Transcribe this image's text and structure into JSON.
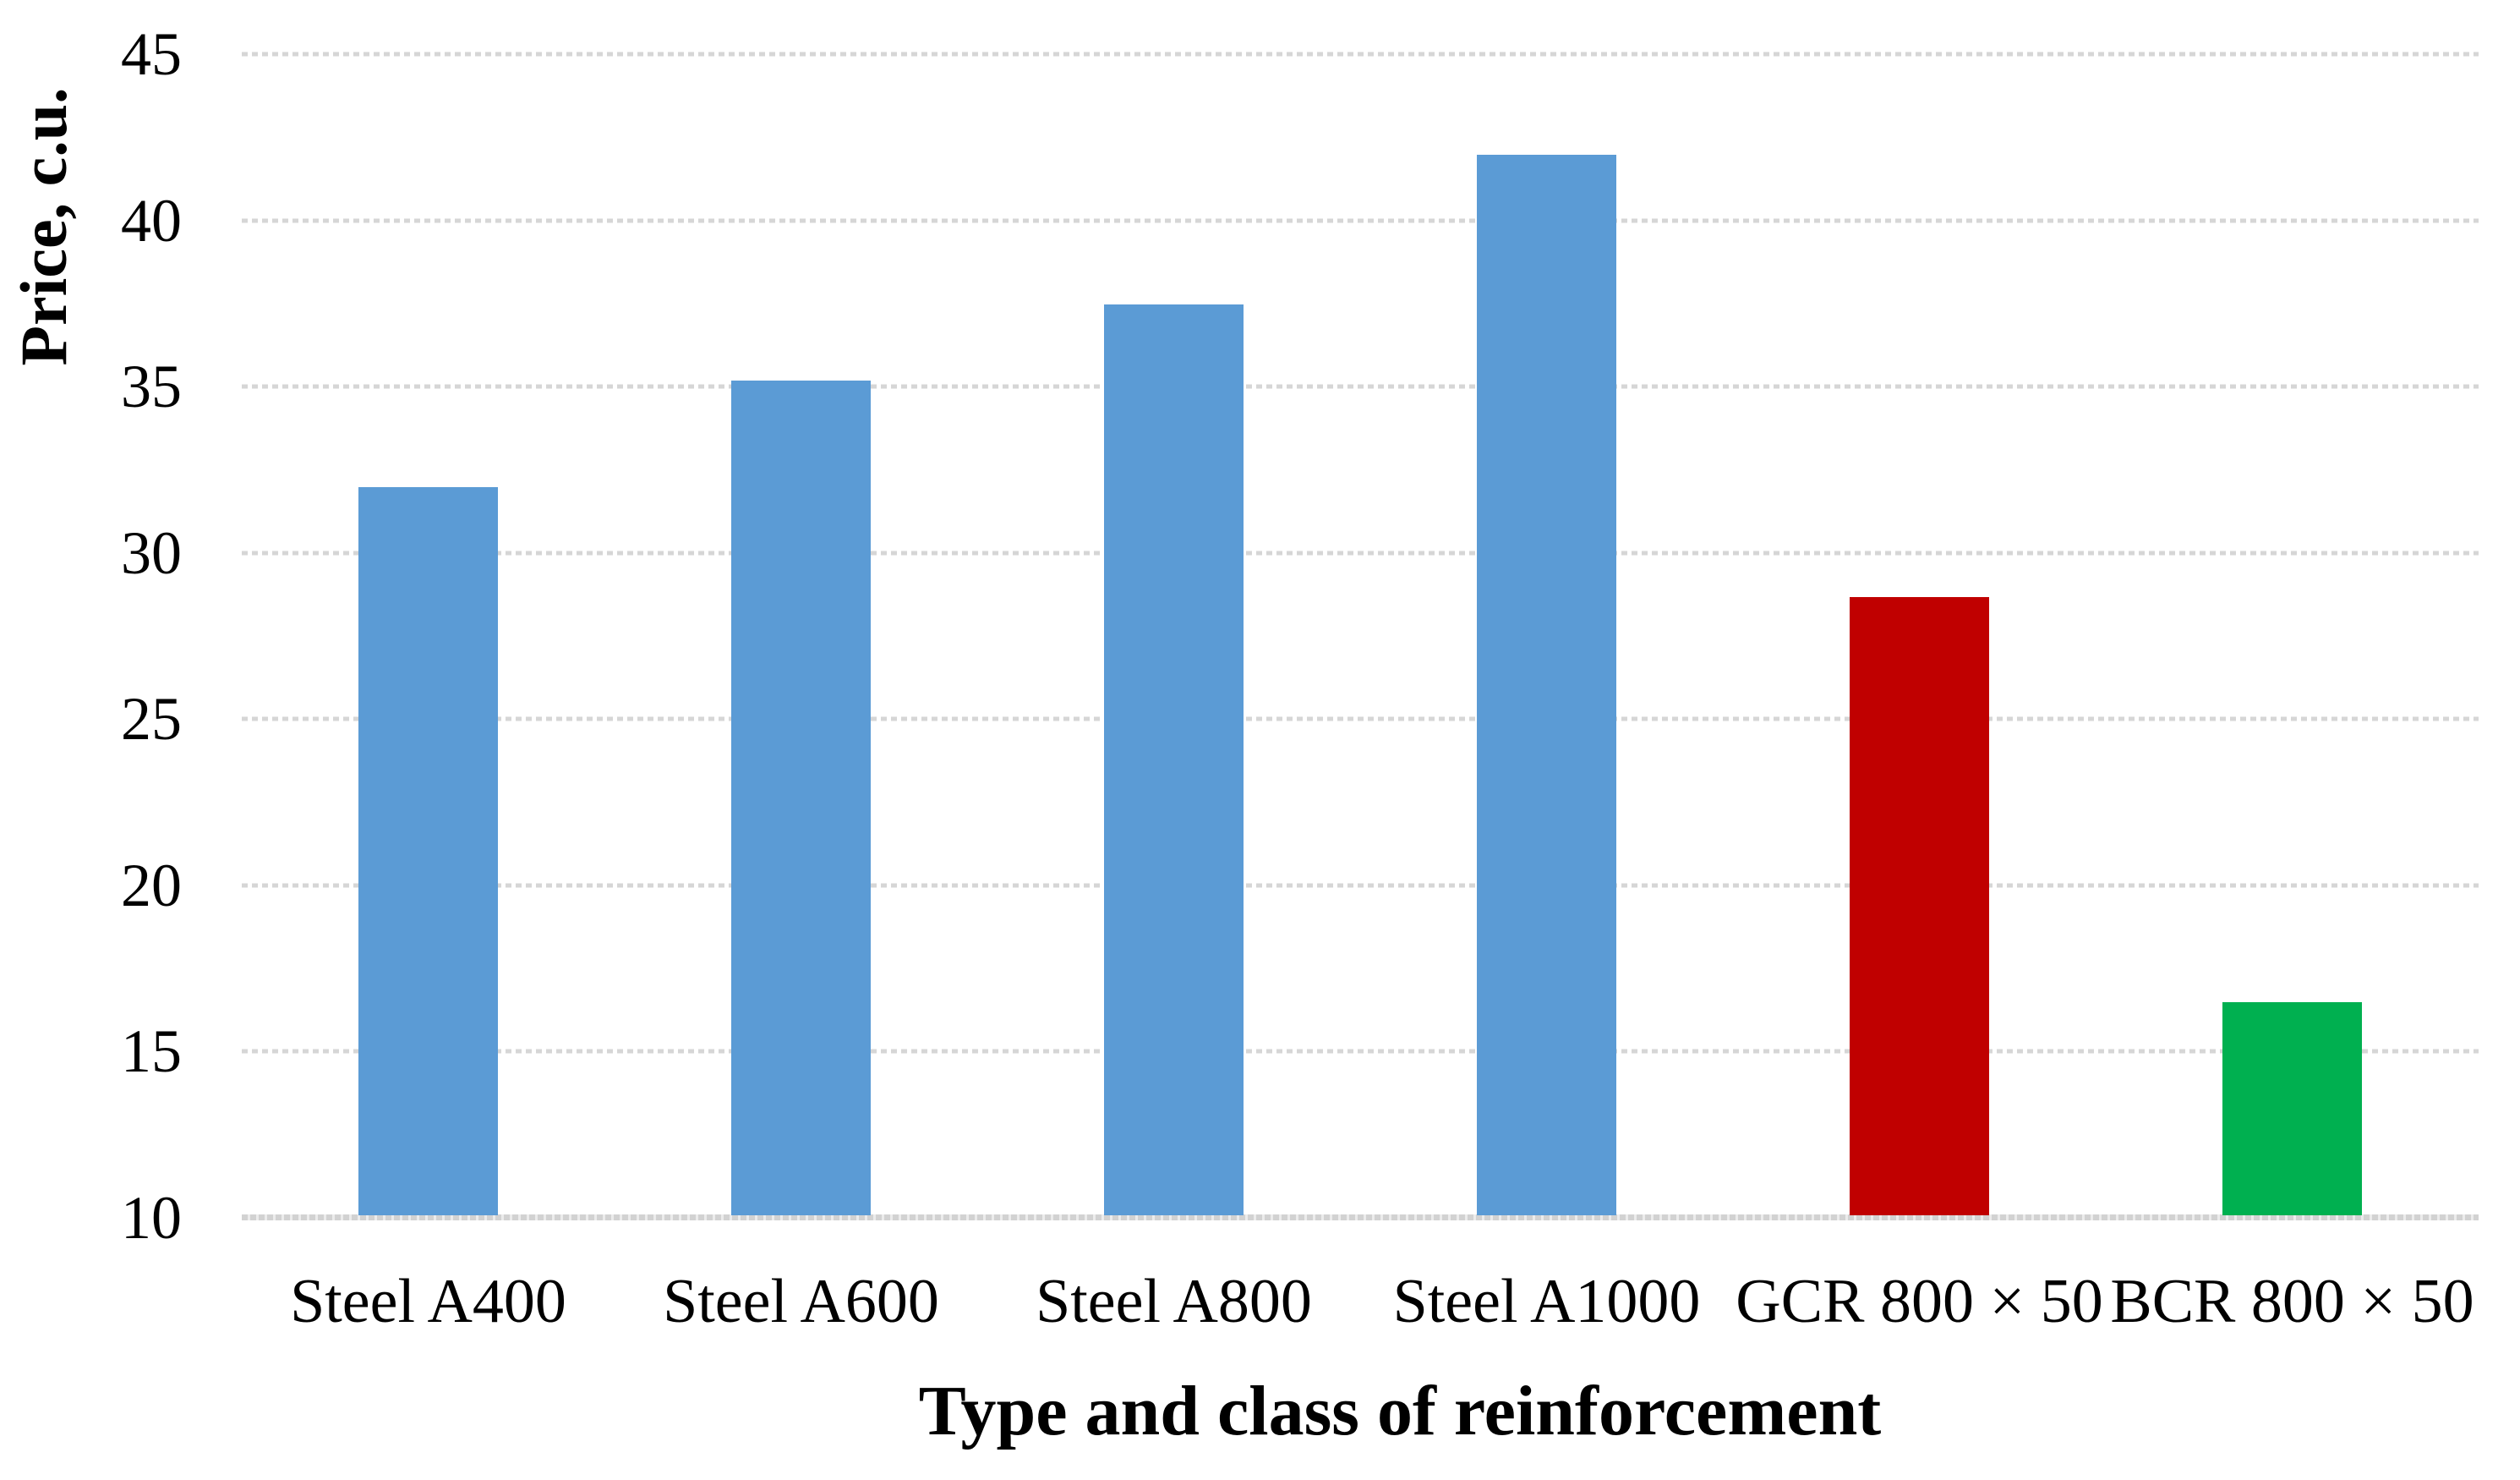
{
  "figure": {
    "kind": "static-bar-chart-figure",
    "background_color": "#ffffff",
    "text_color": "#000000",
    "gridline_color": "#d6d6d6",
    "baseline_color": "#d2d2d2"
  },
  "chart_data": {
    "type": "bar",
    "title": "",
    "xlabel": "Type and class of reinforcement",
    "ylabel": "Price, c.u.",
    "categories": [
      "Steel A400",
      "Steel A600",
      "Steel A800",
      "Steel A1000",
      "GCR 800 × 50",
      "BCR 800 × 50"
    ],
    "values": [
      31.9,
      35.1,
      37.4,
      41.9,
      28.6,
      16.4
    ],
    "bar_colors": [
      "#5B9BD5",
      "#5B9BD5",
      "#5B9BD5",
      "#5B9BD5",
      "#C00000",
      "#00B050"
    ],
    "ylim": [
      10,
      45
    ],
    "yticks": [
      45,
      40,
      35,
      30,
      25,
      20,
      15,
      10
    ],
    "grid": "horizontal-dotted",
    "legend": "none",
    "bar_fraction_of_category": 0.375
  }
}
